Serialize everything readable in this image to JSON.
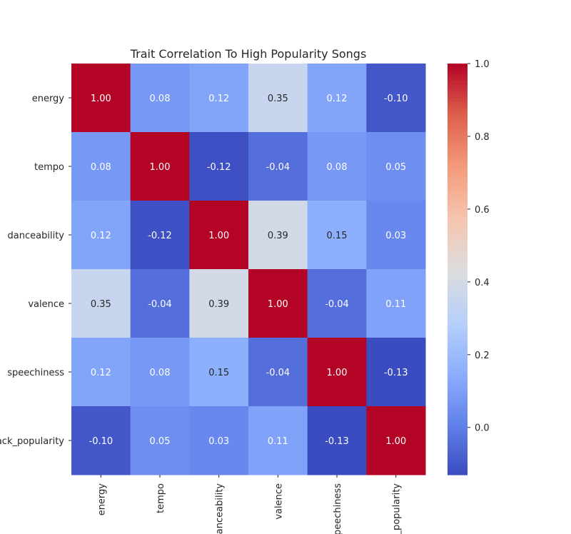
{
  "chart_data": {
    "type": "heatmap",
    "title": "Trait Correlation To High Popularity Songs",
    "row_labels": [
      "energy",
      "tempo",
      "danceability",
      "valence",
      "speechiness",
      "track_popularity"
    ],
    "col_labels": [
      "energy",
      "tempo",
      "danceability",
      "valence",
      "speechiness",
      "track_popularity"
    ],
    "values": [
      [
        1.0,
        0.08,
        0.12,
        0.35,
        0.12,
        -0.1
      ],
      [
        0.08,
        1.0,
        -0.12,
        -0.04,
        0.08,
        0.05
      ],
      [
        0.12,
        -0.12,
        1.0,
        0.39,
        0.15,
        0.03
      ],
      [
        0.35,
        -0.04,
        0.39,
        1.0,
        -0.04,
        0.11
      ],
      [
        0.12,
        0.08,
        0.15,
        -0.04,
        1.0,
        -0.13
      ],
      [
        -0.1,
        0.05,
        0.03,
        0.11,
        -0.13,
        1.0
      ]
    ],
    "number_format": "2 decimals",
    "colormap": "coolwarm",
    "vmin": -0.13,
    "vmax": 1.0,
    "colorbar": {
      "ticks": [
        "0.0",
        "0.2",
        "0.4",
        "0.6",
        "0.8",
        "1.0"
      ],
      "tick_values": [
        0.0,
        0.2,
        0.4,
        0.6,
        0.8,
        1.0
      ]
    }
  }
}
